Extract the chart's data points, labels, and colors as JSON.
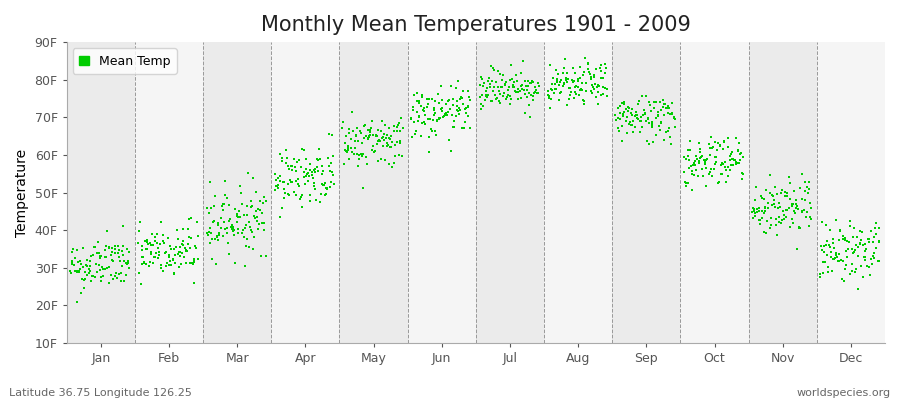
{
  "title": "Monthly Mean Temperatures 1901 - 2009",
  "ylabel": "Temperature",
  "bottom_left_text": "Latitude 36.75 Longitude 126.25",
  "bottom_right_text": "worldspecies.org",
  "legend_label": "Mean Temp",
  "dot_color": "#00CC00",
  "background_color": "#FFFFFF",
  "plot_bg_color": "#F2F2F2",
  "ylim": [
    10,
    90
  ],
  "yticks": [
    10,
    20,
    30,
    40,
    50,
    60,
    70,
    80,
    90
  ],
  "ytick_labels": [
    "10F",
    "20F",
    "30F",
    "40F",
    "50F",
    "60F",
    "70F",
    "80F",
    "90F"
  ],
  "months": [
    "Jan",
    "Feb",
    "Mar",
    "Apr",
    "May",
    "Jun",
    "Jul",
    "Aug",
    "Sep",
    "Oct",
    "Nov",
    "Dec"
  ],
  "month_mean_temps_F": [
    30.0,
    33.5,
    42.0,
    54.0,
    63.0,
    70.5,
    77.5,
    78.0,
    69.5,
    58.0,
    45.5,
    34.0
  ],
  "month_std_F": [
    3.5,
    4.0,
    4.5,
    4.0,
    3.5,
    3.5,
    2.8,
    2.8,
    3.2,
    3.5,
    4.0,
    4.0
  ],
  "month_trend_F": [
    0.015,
    0.01,
    0.01,
    0.01,
    0.01,
    0.008,
    0.008,
    0.008,
    0.008,
    0.01,
    0.01,
    0.01
  ],
  "n_years": 109,
  "year_start": 1901,
  "seed": 42,
  "title_fontsize": 15,
  "axis_label_fontsize": 10,
  "tick_fontsize": 9,
  "annotation_fontsize": 8,
  "dot_size": 3
}
